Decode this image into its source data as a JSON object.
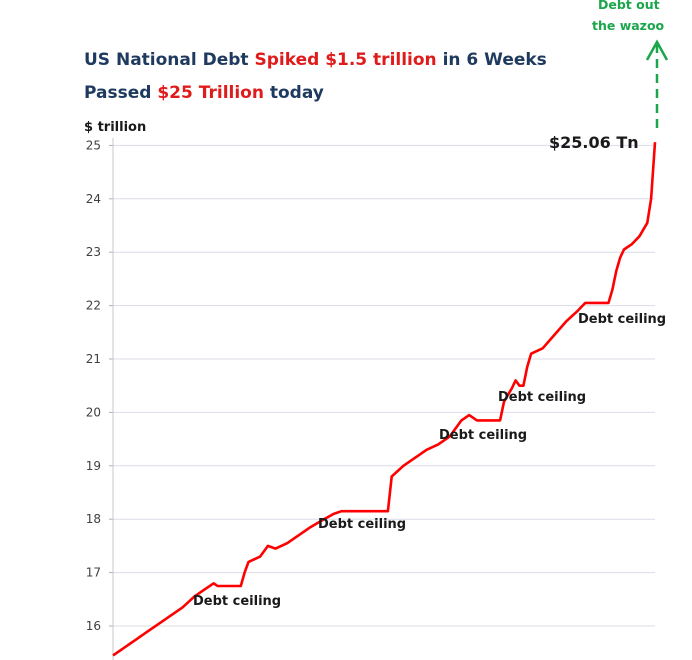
{
  "chart_data": {
    "type": "line",
    "title_parts": [
      {
        "line": 1,
        "text": "US National  Debt ",
        "color": "#1f3a5f"
      },
      {
        "line": 1,
        "text": "Spiked $1.5 trillion ",
        "color": "#e01b1b"
      },
      {
        "line": 1,
        "text": "in 6 Weeks",
        "color": "#1f3a5f"
      },
      {
        "line": 2,
        "text": "Passed ",
        "color": "#1f3a5f"
      },
      {
        "line": 2,
        "text": "$25 Trillion ",
        "color": "#e01b1b"
      },
      {
        "line": 2,
        "text": "today",
        "color": "#1f3a5f"
      }
    ],
    "ylabel": "$ trillion",
    "ylim": [
      15.2,
      25
    ],
    "yticks": [
      16,
      17,
      18,
      19,
      20,
      21,
      22,
      23,
      24,
      25
    ],
    "grid": true,
    "series_color": "#ff0000",
    "series": [
      {
        "values": [
          [
            0,
            15.45
          ],
          [
            3,
            15.6
          ],
          [
            6,
            15.75
          ],
          [
            9,
            15.9
          ],
          [
            12,
            16.05
          ],
          [
            15,
            16.2
          ],
          [
            18,
            16.35
          ],
          [
            21,
            16.55
          ],
          [
            24,
            16.7
          ],
          [
            26,
            16.8
          ],
          [
            27,
            16.75
          ],
          [
            33,
            16.75
          ],
          [
            34,
            17.0
          ],
          [
            35,
            17.2
          ],
          [
            38,
            17.3
          ],
          [
            40,
            17.5
          ],
          [
            42,
            17.45
          ],
          [
            45,
            17.55
          ],
          [
            48,
            17.7
          ],
          [
            51,
            17.85
          ],
          [
            54,
            17.98
          ],
          [
            57,
            18.1
          ],
          [
            59,
            18.15
          ],
          [
            60,
            18.15
          ],
          [
            71,
            18.15
          ],
          [
            72,
            18.8
          ],
          [
            75,
            19.0
          ],
          [
            78,
            19.15
          ],
          [
            81,
            19.3
          ],
          [
            84,
            19.4
          ],
          [
            87,
            19.55
          ],
          [
            90,
            19.85
          ],
          [
            92,
            19.95
          ],
          [
            93,
            19.9
          ],
          [
            94,
            19.85
          ],
          [
            100,
            19.85
          ],
          [
            101,
            20.2
          ],
          [
            103,
            20.45
          ],
          [
            104,
            20.6
          ],
          [
            105,
            20.5
          ],
          [
            106,
            20.5
          ],
          [
            107,
            20.85
          ],
          [
            108,
            21.1
          ],
          [
            111,
            21.2
          ],
          [
            114,
            21.45
          ],
          [
            117,
            21.7
          ],
          [
            120,
            21.9
          ],
          [
            122,
            22.05
          ],
          [
            123,
            22.05
          ],
          [
            128,
            22.05
          ],
          [
            129,
            22.3
          ],
          [
            130,
            22.65
          ],
          [
            131,
            22.9
          ],
          [
            132,
            23.05
          ],
          [
            134,
            23.15
          ],
          [
            136,
            23.3
          ],
          [
            138,
            23.55
          ],
          [
            139,
            24.0
          ],
          [
            140,
            25.06
          ]
        ]
      }
    ],
    "annotations": [
      {
        "id": "last-value",
        "text": "$25.06 Tn"
      },
      {
        "id": "ceiling-1",
        "text": "Debt ceiling"
      },
      {
        "id": "ceiling-2",
        "text": "Debt ceiling"
      },
      {
        "id": "ceiling-3",
        "text": "Debt ceiling"
      },
      {
        "id": "ceiling-4",
        "text": "Debt ceiling"
      },
      {
        "id": "ceiling-5",
        "text": "Debt ceiling"
      },
      {
        "id": "wazoo-1",
        "text": "Debt out"
      },
      {
        "id": "wazoo-2",
        "text": "the wazoo"
      }
    ]
  }
}
